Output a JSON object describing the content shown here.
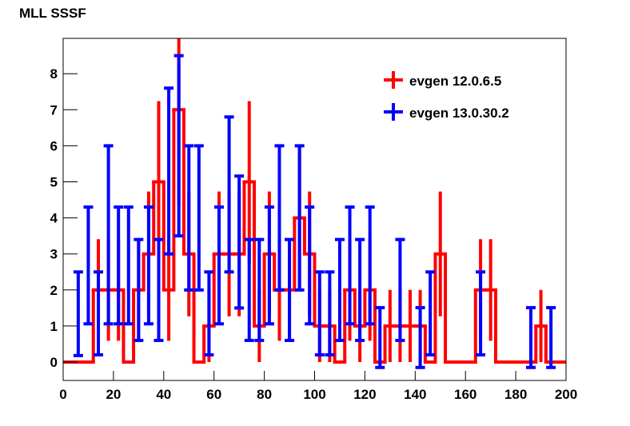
{
  "chart_data": {
    "type": "histogram",
    "title": "MLL SSSF",
    "bins": [
      0,
      4,
      8,
      12,
      16,
      20,
      24,
      28,
      32,
      36,
      40,
      44,
      48,
      52,
      56,
      60,
      64,
      68,
      72,
      76,
      80,
      84,
      88,
      92,
      96,
      100,
      104,
      108,
      112,
      116,
      120,
      124,
      128,
      132,
      136,
      140,
      144,
      148,
      152,
      156,
      160,
      164,
      168,
      172,
      176,
      180,
      184,
      188,
      192,
      196,
      200
    ],
    "series": [
      {
        "name": "evgen 12.0.6.5",
        "color": "#ff0000",
        "style": "hist",
        "values": [
          0,
          0,
          0,
          2,
          2,
          2,
          0,
          2,
          3,
          5,
          2,
          7,
          3,
          0,
          1,
          3,
          3,
          3,
          5,
          1,
          3,
          2,
          2,
          4,
          3,
          1,
          1,
          0,
          2,
          1,
          2,
          0,
          1,
          1,
          1,
          1,
          0,
          3,
          0,
          0,
          0,
          2,
          2,
          0,
          0,
          0,
          0,
          1,
          0,
          0
        ],
        "errors": [
          0,
          0,
          0,
          1.41,
          1.41,
          1.41,
          0,
          1.41,
          1.73,
          2.24,
          1.41,
          2.65,
          1.73,
          0,
          1,
          1.73,
          1.73,
          1.73,
          2.24,
          1,
          1.73,
          1.41,
          1.41,
          2,
          1.73,
          1,
          1,
          0,
          1.41,
          1,
          1.41,
          0,
          1,
          1,
          1,
          1,
          0,
          1.73,
          0,
          0,
          0,
          1.41,
          1.41,
          0,
          0,
          0,
          0,
          1,
          0,
          0
        ]
      },
      {
        "name": "evgen 13.0.30.2",
        "color": "#0000ff",
        "style": "points",
        "values": [
          null,
          1.34,
          2.68,
          1.35,
          3.53,
          2.68,
          2.68,
          2.0,
          2.68,
          2.0,
          5.3,
          6.0,
          4.0,
          4.0,
          1.35,
          2.68,
          4.65,
          3.33,
          2.0,
          2.0,
          2.68,
          4.0,
          2.0,
          4.0,
          2.68,
          1.35,
          1.35,
          2.0,
          2.68,
          2.0,
          2.68,
          0.68,
          null,
          2.0,
          null,
          0.68,
          1.35,
          null,
          null,
          null,
          null,
          1.35,
          null,
          null,
          null,
          null,
          0.68,
          null,
          0.68,
          null
        ],
        "errors": [
          null,
          1.16,
          1.62,
          1.15,
          2.47,
          1.62,
          1.62,
          1.4,
          1.62,
          1.4,
          2.3,
          2.5,
          2.0,
          2.0,
          1.15,
          1.62,
          2.15,
          1.83,
          1.4,
          1.4,
          1.62,
          2.0,
          1.4,
          2.0,
          1.62,
          1.15,
          1.15,
          1.4,
          1.62,
          1.4,
          1.62,
          0.83,
          null,
          1.4,
          null,
          0.83,
          1.15,
          null,
          null,
          null,
          null,
          1.15,
          null,
          null,
          null,
          null,
          0.83,
          null,
          0.83,
          null
        ]
      }
    ],
    "xlim": [
      0,
      200
    ],
    "ylim": [
      -0.51,
      8.98
    ],
    "xticks": [
      0,
      20,
      40,
      60,
      80,
      100,
      120,
      140,
      160,
      180,
      200
    ],
    "yticks": [
      0,
      1,
      2,
      3,
      4,
      5,
      6,
      7,
      8
    ],
    "legend": "upper right"
  }
}
